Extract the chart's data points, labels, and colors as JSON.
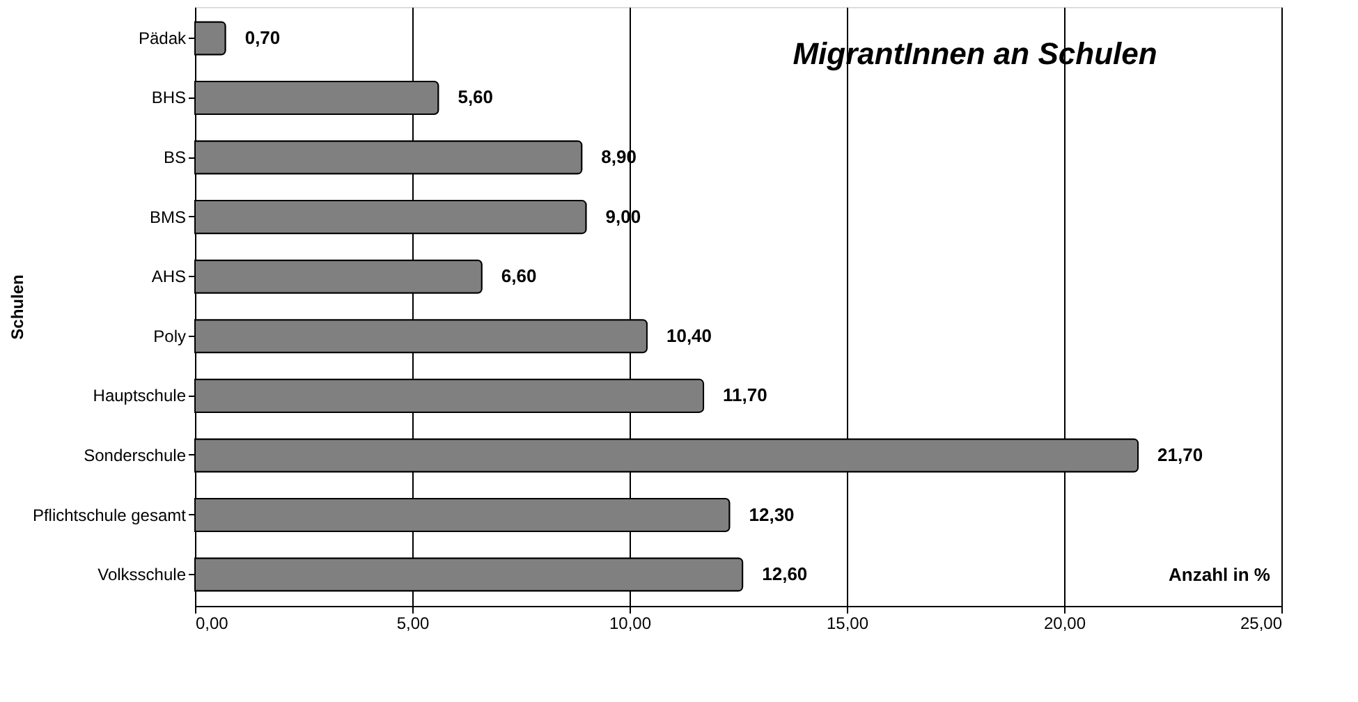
{
  "chart_data": {
    "type": "bar",
    "orientation": "horizontal",
    "title": "MigrantInnen an Schulen",
    "xlabel": "Anzahl in %",
    "ylabel": "Schulen",
    "categories": [
      "Pädak",
      "BHS",
      "BS",
      "BMS",
      "AHS",
      "Poly",
      "Hauptschule",
      "Sonderschule",
      "Pflichtschule gesamt",
      "Volksschule"
    ],
    "values": [
      0.7,
      5.6,
      8.9,
      9.0,
      6.6,
      10.4,
      11.7,
      21.7,
      12.3,
      12.6
    ],
    "value_labels": [
      "0,70",
      "5,60",
      "8,90",
      "9,00",
      "6,60",
      "10,40",
      "11,70",
      "21,70",
      "12,30",
      "12,60"
    ],
    "color": "#808080",
    "xlim": [
      0,
      25
    ],
    "xticks": [
      {
        "value": 0,
        "label": "0,00"
      },
      {
        "value": 5,
        "label": "5,00"
      },
      {
        "value": 10,
        "label": "10,00"
      },
      {
        "value": 15,
        "label": "15,00"
      },
      {
        "value": 20,
        "label": "20,00"
      },
      {
        "value": 25,
        "label": "25,00"
      }
    ],
    "grid": "x",
    "legend": false
  }
}
